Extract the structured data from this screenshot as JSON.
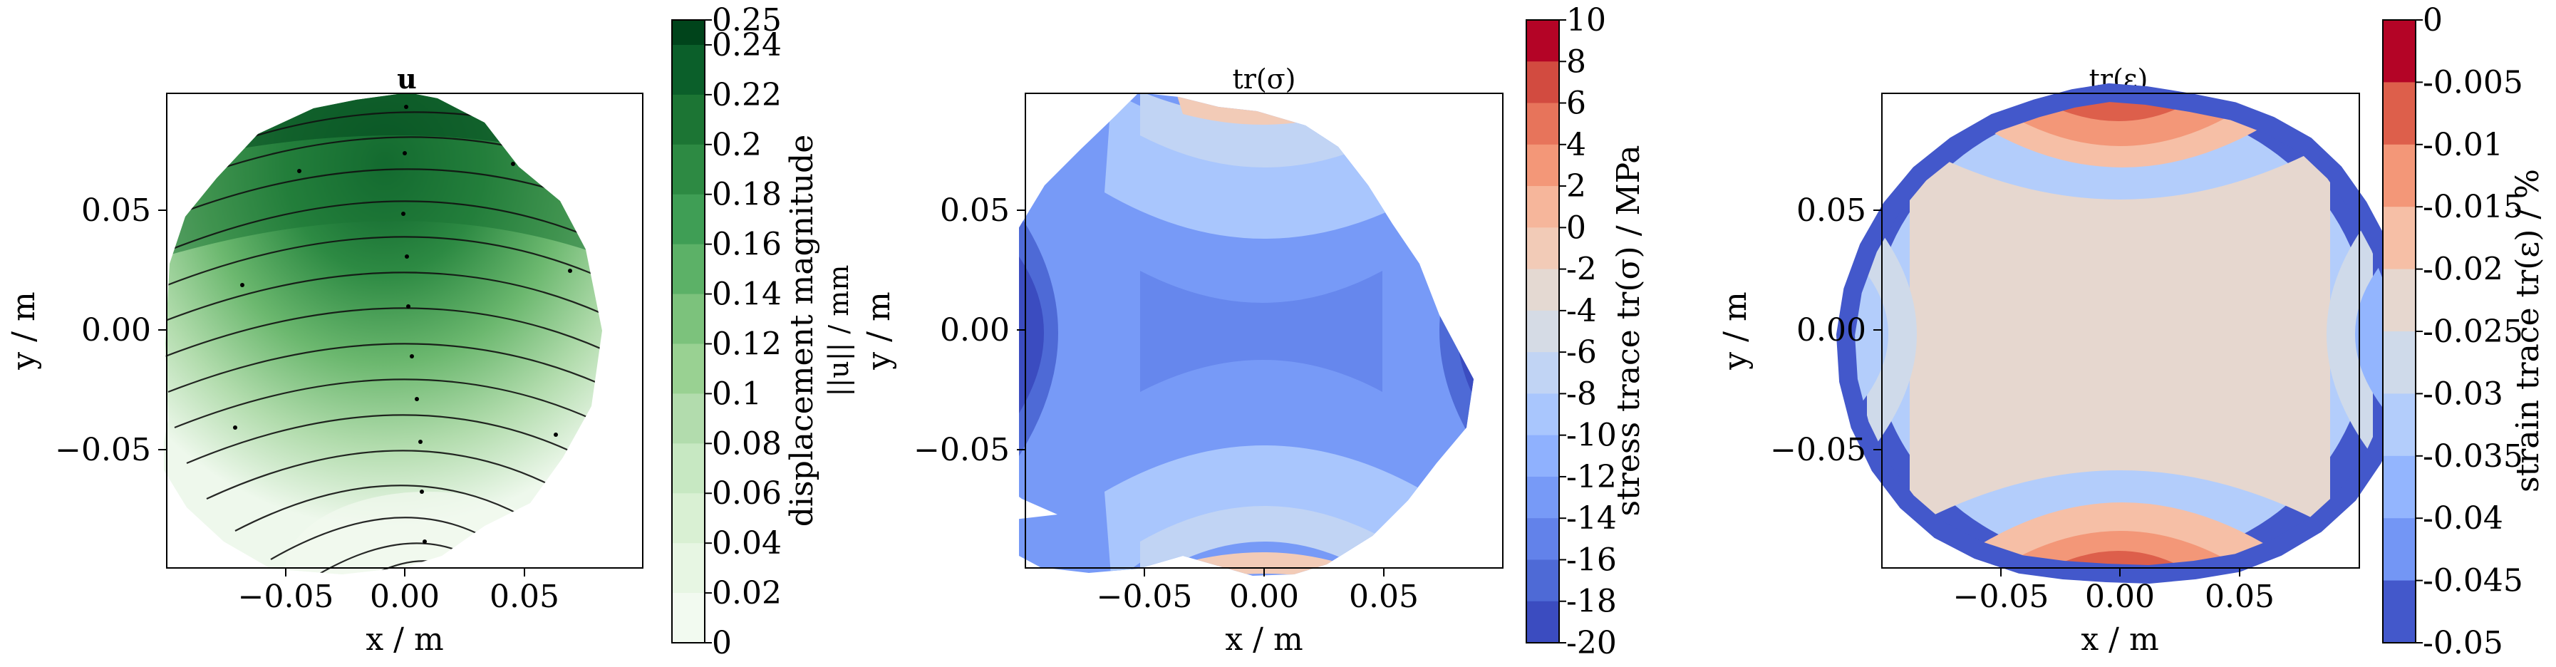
{
  "chart_data": [
    {
      "type": "contour",
      "title": "u",
      "xlabel": "x / m",
      "ylabel": "y / m",
      "xticks": [
        "−0.05",
        "0.00",
        "0.05"
      ],
      "yticks": [
        "0.05",
        "0.00",
        "−0.05"
      ],
      "xlim": [
        -0.1,
        0.1
      ],
      "ylim": [
        -0.1,
        0.1
      ],
      "overlay": "streamlines",
      "field": "displacement magnitude, increasing toward the top (~0.25 mm) and decreasing toward the bottom (~0 mm)",
      "colorbar": {
        "label_line1": "displacement magnitude",
        "label_line2": "||u|| / mm",
        "ticks": [
          "0.25",
          "0.24",
          "0.22",
          "0.2",
          "0.18",
          "0.16",
          "0.14",
          "0.12",
          "0.1",
          "0.08",
          "0.06",
          "0.04",
          "0.02",
          "0"
        ],
        "levels": [
          0,
          0.02,
          0.04,
          0.06,
          0.08,
          0.1,
          0.12,
          0.14,
          0.16,
          0.18,
          0.2,
          0.22,
          0.24,
          0.25
        ],
        "colors_top_to_bottom": [
          "#00441b",
          "#0b5f2a",
          "#1c7534",
          "#2d8a43",
          "#3f9e55",
          "#5cb167",
          "#7cc27c",
          "#99d192",
          "#b2dcad",
          "#c7e8c2",
          "#d9f0d3",
          "#e7f6e3",
          "#f2faf0"
        ]
      }
    },
    {
      "type": "contour",
      "title": "tr(σ)",
      "xlabel": "x / m",
      "ylabel": "y / m",
      "xticks": [
        "−0.05",
        "0.00",
        "0.05"
      ],
      "yticks": [
        "0.05",
        "0.00",
        "−0.05"
      ],
      "xlim": [
        -0.1,
        0.1
      ],
      "ylim": [
        -0.1,
        0.1
      ],
      "field": "stress trace, lowest (~-20 MPa) at left and right edges, highest (~0 MPa) at top and bottom edges",
      "colorbar": {
        "label": "stress trace tr(σ) / MPa",
        "ticks": [
          "10",
          "8",
          "6",
          "4",
          "2",
          "0",
          "-2",
          "-4",
          "-6",
          "-8",
          "-10",
          "-12",
          "-14",
          "-16",
          "-18",
          "-20"
        ],
        "levels": [
          -20,
          -18,
          -16,
          -14,
          -12,
          -10,
          -8,
          -6,
          -4,
          -2,
          0,
          2,
          4,
          6,
          8,
          10
        ],
        "colors_top_to_bottom": [
          "#b40426",
          "#d24b40",
          "#e7745b",
          "#f39778",
          "#f6b69b",
          "#f2cbb7",
          "#e4d9d2",
          "#d5dbe5",
          "#c1d4f4",
          "#a9c6fd",
          "#8fb1fe",
          "#779af7",
          "#6282ea",
          "#4e6ad6",
          "#3b4cc0"
        ]
      }
    },
    {
      "type": "contour",
      "title": "tr(ε)",
      "xlabel": "x / m",
      "ylabel": "y / m",
      "xticks": [
        "−0.05",
        "0.00",
        "0.05"
      ],
      "yticks": [
        "0.05",
        "0.00",
        "−0.05"
      ],
      "xlim": [
        -0.1,
        0.1
      ],
      "ylim": [
        -0.1,
        0.1
      ],
      "field": "strain trace, highest (~-0.005 %) at top and bottom, lowest (~-0.045 %) near left and right edges and the outer rim",
      "colorbar": {
        "label": "strain trace tr(ε) / %",
        "ticks": [
          "0",
          "-0.005",
          "-0.01",
          "-0.015",
          "-0.02",
          "-0.025",
          "-0.03",
          "-0.035",
          "-0.04",
          "-0.045",
          "-0.05"
        ],
        "levels": [
          -0.05,
          -0.045,
          -0.04,
          -0.035,
          -0.03,
          -0.025,
          -0.02,
          -0.015,
          -0.01,
          -0.005,
          0
        ],
        "colors_top_to_bottom": [
          "#b40426",
          "#dd5f4b",
          "#f39778",
          "#f6bfa6",
          "#e6d7cf",
          "#cfdaea",
          "#b3cdfb",
          "#93b5fe",
          "#7396f5",
          "#4358cb"
        ]
      }
    }
  ]
}
